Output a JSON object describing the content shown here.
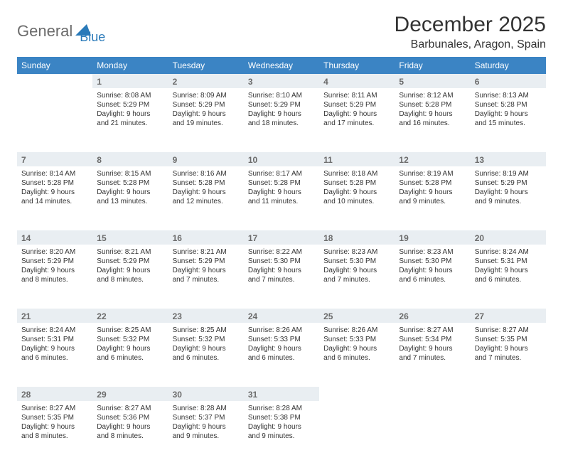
{
  "brand": {
    "text1": "General",
    "text2": "Blue"
  },
  "title": "December 2025",
  "location": "Barbunales, Aragon, Spain",
  "colors": {
    "header_bg": "#3b84c4",
    "header_text": "#ffffff",
    "daynum_bg": "#e9eef2",
    "daynum_text": "#6b6b6b",
    "border": "#3b84c4",
    "body_text": "#333333",
    "background": "#ffffff",
    "logo_gray": "#6b6b6b",
    "logo_blue": "#2a7ab9"
  },
  "day_names": [
    "Sunday",
    "Monday",
    "Tuesday",
    "Wednesday",
    "Thursday",
    "Friday",
    "Saturday"
  ],
  "weeks": [
    [
      {
        "n": "",
        "sunrise": "",
        "sunset": "",
        "daylight": ""
      },
      {
        "n": "1",
        "sunrise": "8:08 AM",
        "sunset": "5:29 PM",
        "daylight": "9 hours and 21 minutes."
      },
      {
        "n": "2",
        "sunrise": "8:09 AM",
        "sunset": "5:29 PM",
        "daylight": "9 hours and 19 minutes."
      },
      {
        "n": "3",
        "sunrise": "8:10 AM",
        "sunset": "5:29 PM",
        "daylight": "9 hours and 18 minutes."
      },
      {
        "n": "4",
        "sunrise": "8:11 AM",
        "sunset": "5:29 PM",
        "daylight": "9 hours and 17 minutes."
      },
      {
        "n": "5",
        "sunrise": "8:12 AM",
        "sunset": "5:28 PM",
        "daylight": "9 hours and 16 minutes."
      },
      {
        "n": "6",
        "sunrise": "8:13 AM",
        "sunset": "5:28 PM",
        "daylight": "9 hours and 15 minutes."
      }
    ],
    [
      {
        "n": "7",
        "sunrise": "8:14 AM",
        "sunset": "5:28 PM",
        "daylight": "9 hours and 14 minutes."
      },
      {
        "n": "8",
        "sunrise": "8:15 AM",
        "sunset": "5:28 PM",
        "daylight": "9 hours and 13 minutes."
      },
      {
        "n": "9",
        "sunrise": "8:16 AM",
        "sunset": "5:28 PM",
        "daylight": "9 hours and 12 minutes."
      },
      {
        "n": "10",
        "sunrise": "8:17 AM",
        "sunset": "5:28 PM",
        "daylight": "9 hours and 11 minutes."
      },
      {
        "n": "11",
        "sunrise": "8:18 AM",
        "sunset": "5:28 PM",
        "daylight": "9 hours and 10 minutes."
      },
      {
        "n": "12",
        "sunrise": "8:19 AM",
        "sunset": "5:28 PM",
        "daylight": "9 hours and 9 minutes."
      },
      {
        "n": "13",
        "sunrise": "8:19 AM",
        "sunset": "5:29 PM",
        "daylight": "9 hours and 9 minutes."
      }
    ],
    [
      {
        "n": "14",
        "sunrise": "8:20 AM",
        "sunset": "5:29 PM",
        "daylight": "9 hours and 8 minutes."
      },
      {
        "n": "15",
        "sunrise": "8:21 AM",
        "sunset": "5:29 PM",
        "daylight": "9 hours and 8 minutes."
      },
      {
        "n": "16",
        "sunrise": "8:21 AM",
        "sunset": "5:29 PM",
        "daylight": "9 hours and 7 minutes."
      },
      {
        "n": "17",
        "sunrise": "8:22 AM",
        "sunset": "5:30 PM",
        "daylight": "9 hours and 7 minutes."
      },
      {
        "n": "18",
        "sunrise": "8:23 AM",
        "sunset": "5:30 PM",
        "daylight": "9 hours and 7 minutes."
      },
      {
        "n": "19",
        "sunrise": "8:23 AM",
        "sunset": "5:30 PM",
        "daylight": "9 hours and 6 minutes."
      },
      {
        "n": "20",
        "sunrise": "8:24 AM",
        "sunset": "5:31 PM",
        "daylight": "9 hours and 6 minutes."
      }
    ],
    [
      {
        "n": "21",
        "sunrise": "8:24 AM",
        "sunset": "5:31 PM",
        "daylight": "9 hours and 6 minutes."
      },
      {
        "n": "22",
        "sunrise": "8:25 AM",
        "sunset": "5:32 PM",
        "daylight": "9 hours and 6 minutes."
      },
      {
        "n": "23",
        "sunrise": "8:25 AM",
        "sunset": "5:32 PM",
        "daylight": "9 hours and 6 minutes."
      },
      {
        "n": "24",
        "sunrise": "8:26 AM",
        "sunset": "5:33 PM",
        "daylight": "9 hours and 6 minutes."
      },
      {
        "n": "25",
        "sunrise": "8:26 AM",
        "sunset": "5:33 PM",
        "daylight": "9 hours and 6 minutes."
      },
      {
        "n": "26",
        "sunrise": "8:27 AM",
        "sunset": "5:34 PM",
        "daylight": "9 hours and 7 minutes."
      },
      {
        "n": "27",
        "sunrise": "8:27 AM",
        "sunset": "5:35 PM",
        "daylight": "9 hours and 7 minutes."
      }
    ],
    [
      {
        "n": "28",
        "sunrise": "8:27 AM",
        "sunset": "5:35 PM",
        "daylight": "9 hours and 8 minutes."
      },
      {
        "n": "29",
        "sunrise": "8:27 AM",
        "sunset": "5:36 PM",
        "daylight": "9 hours and 8 minutes."
      },
      {
        "n": "30",
        "sunrise": "8:28 AM",
        "sunset": "5:37 PM",
        "daylight": "9 hours and 9 minutes."
      },
      {
        "n": "31",
        "sunrise": "8:28 AM",
        "sunset": "5:38 PM",
        "daylight": "9 hours and 9 minutes."
      },
      {
        "n": "",
        "sunrise": "",
        "sunset": "",
        "daylight": ""
      },
      {
        "n": "",
        "sunrise": "",
        "sunset": "",
        "daylight": ""
      },
      {
        "n": "",
        "sunrise": "",
        "sunset": "",
        "daylight": ""
      }
    ]
  ],
  "labels": {
    "sunrise": "Sunrise:",
    "sunset": "Sunset:",
    "daylight": "Daylight:"
  }
}
